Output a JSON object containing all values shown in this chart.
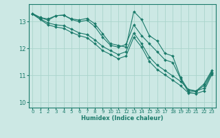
{
  "title": "",
  "xlabel": "Humidex (Indice chaleur)",
  "ylabel": "",
  "background_color": "#cce8e4",
  "grid_color": "#aad4cc",
  "line_color": "#1a7a6a",
  "marker_color": "#1a7a6a",
  "xlim": [
    -0.5,
    23.5
  ],
  "ylim": [
    9.8,
    13.65
  ],
  "yticks": [
    10,
    11,
    12,
    13
  ],
  "xticks": [
    0,
    1,
    2,
    3,
    4,
    5,
    6,
    7,
    8,
    9,
    10,
    11,
    12,
    13,
    14,
    15,
    16,
    17,
    18,
    19,
    20,
    21,
    22,
    23
  ],
  "lines": [
    [
      0,
      13.3,
      1,
      13.15,
      2,
      13.1,
      3,
      13.22,
      4,
      13.24,
      5,
      13.1,
      6,
      13.06,
      7,
      13.12,
      8,
      12.92,
      9,
      12.55,
      10,
      12.18,
      11,
      12.12,
      12,
      12.05,
      13,
      13.38,
      14,
      13.08,
      15,
      12.48,
      16,
      12.28,
      17,
      11.82,
      18,
      11.72,
      19,
      10.92,
      20,
      10.45,
      21,
      10.42,
      22,
      10.68,
      23,
      11.18
    ],
    [
      0,
      13.3,
      1,
      13.15,
      2,
      13.05,
      3,
      13.22,
      4,
      13.24,
      5,
      13.08,
      6,
      13.0,
      7,
      13.05,
      8,
      12.82,
      9,
      12.42,
      10,
      12.12,
      11,
      12.05,
      12,
      12.15,
      13,
      12.88,
      14,
      12.48,
      15,
      12.18,
      16,
      11.88,
      17,
      11.58,
      18,
      11.48,
      19,
      10.88,
      20,
      10.38,
      21,
      10.4,
      22,
      10.62,
      23,
      11.12
    ],
    [
      0,
      13.28,
      1,
      13.1,
      2,
      12.95,
      3,
      12.88,
      4,
      12.85,
      5,
      12.72,
      6,
      12.58,
      7,
      12.52,
      8,
      12.32,
      9,
      12.08,
      10,
      11.92,
      11,
      11.78,
      12,
      11.88,
      13,
      12.58,
      14,
      12.18,
      15,
      11.68,
      16,
      11.38,
      17,
      11.18,
      18,
      10.98,
      19,
      10.78,
      20,
      10.48,
      21,
      10.42,
      22,
      10.52,
      23,
      11.08
    ],
    [
      0,
      13.28,
      1,
      13.08,
      2,
      12.88,
      3,
      12.8,
      4,
      12.75,
      5,
      12.6,
      6,
      12.48,
      7,
      12.4,
      8,
      12.18,
      9,
      11.92,
      10,
      11.78,
      11,
      11.62,
      12,
      11.72,
      13,
      12.42,
      14,
      12.05,
      15,
      11.52,
      16,
      11.22,
      17,
      11.02,
      18,
      10.82,
      19,
      10.62,
      20,
      10.35,
      21,
      10.32,
      22,
      10.42,
      23,
      11.02
    ]
  ]
}
